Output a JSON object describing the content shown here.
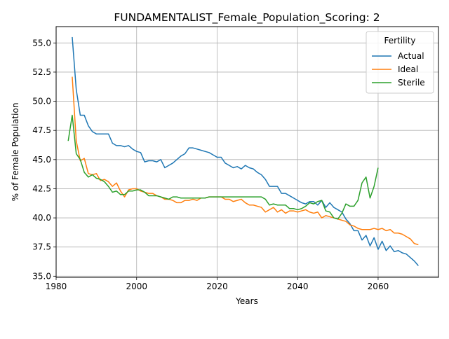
{
  "chart_data": {
    "type": "line",
    "title": "FUNDAMENTALIST_Female_Population_Scoring: 2",
    "xlabel": "Years",
    "ylabel": "% of Female Population",
    "xlim": [
      1980,
      2075
    ],
    "ylim": [
      34.9,
      56.4
    ],
    "grid": true,
    "legend": {
      "title": "Fertility",
      "position": "top-right"
    },
    "xticks": [
      1980,
      2000,
      2020,
      2040,
      2060
    ],
    "xtick_labels": [
      "1980",
      "2000",
      "2020",
      "2040",
      "2060"
    ],
    "yticks": [
      35.0,
      37.5,
      40.0,
      42.5,
      45.0,
      47.5,
      50.0,
      52.5,
      55.0
    ],
    "ytick_labels": [
      "35.0",
      "37.5",
      "40.0",
      "42.5",
      "45.0",
      "47.5",
      "50.0",
      "52.5",
      "55.0"
    ],
    "series": [
      {
        "name": "Actual",
        "color": "#1f77b4",
        "x": [
          1984,
          1985,
          1986,
          1987,
          1988,
          1989,
          1990,
          1991,
          1992,
          1993,
          1994,
          1995,
          1996,
          1997,
          1998,
          1999,
          2000,
          2001,
          2002,
          2003,
          2004,
          2005,
          2006,
          2007,
          2008,
          2009,
          2010,
          2011,
          2012,
          2013,
          2014,
          2015,
          2016,
          2017,
          2018,
          2019,
          2020,
          2021,
          2022,
          2023,
          2024,
          2025,
          2026,
          2027,
          2028,
          2029,
          2030,
          2031,
          2032,
          2033,
          2034,
          2035,
          2036,
          2037,
          2038,
          2039,
          2040,
          2041,
          2042,
          2043,
          2044,
          2045,
          2046,
          2047,
          2048,
          2049,
          2050,
          2051,
          2052,
          2053,
          2054,
          2055,
          2056,
          2057,
          2058,
          2059,
          2060,
          2061,
          2062,
          2063,
          2064,
          2065,
          2066,
          2067,
          2068,
          2069,
          2070
        ],
        "values": [
          55.5,
          51.0,
          48.8,
          48.8,
          47.9,
          47.4,
          47.2,
          47.2,
          47.2,
          47.2,
          46.4,
          46.2,
          46.2,
          46.1,
          46.2,
          45.9,
          45.7,
          45.6,
          44.8,
          44.9,
          44.9,
          44.8,
          45.0,
          44.3,
          44.5,
          44.7,
          45.0,
          45.3,
          45.5,
          46.0,
          46.0,
          45.9,
          45.8,
          45.7,
          45.6,
          45.4,
          45.2,
          45.2,
          44.7,
          44.5,
          44.3,
          44.4,
          44.2,
          44.5,
          44.3,
          44.2,
          43.9,
          43.7,
          43.3,
          42.7,
          42.7,
          42.7,
          42.1,
          42.1,
          41.9,
          41.7,
          41.5,
          41.3,
          41.2,
          41.4,
          41.4,
          41.1,
          41.5,
          40.9,
          41.3,
          40.9,
          40.7,
          40.5,
          39.9,
          39.5,
          38.9,
          38.9,
          38.1,
          38.5,
          37.6,
          38.3,
          37.3,
          38.0,
          37.2,
          37.6,
          37.1,
          37.2,
          37.0,
          36.9,
          36.6,
          36.3,
          35.9
        ]
      },
      {
        "name": "Ideal",
        "color": "#ff7f0e",
        "x": [
          1984,
          1985,
          1986,
          1987,
          1988,
          1989,
          1990,
          1991,
          1992,
          1993,
          1994,
          1995,
          1996,
          1997,
          1998,
          1999,
          2000,
          2001,
          2002,
          2003,
          2004,
          2005,
          2006,
          2007,
          2008,
          2009,
          2010,
          2011,
          2012,
          2013,
          2014,
          2015,
          2016,
          2017,
          2018,
          2019,
          2020,
          2021,
          2022,
          2023,
          2024,
          2025,
          2026,
          2027,
          2028,
          2029,
          2030,
          2031,
          2032,
          2033,
          2034,
          2035,
          2036,
          2037,
          2038,
          2039,
          2040,
          2041,
          2042,
          2043,
          2044,
          2045,
          2046,
          2047,
          2048,
          2049,
          2050,
          2051,
          2052,
          2053,
          2054,
          2055,
          2056,
          2057,
          2058,
          2059,
          2060,
          2061,
          2062,
          2063,
          2064,
          2065,
          2066,
          2067,
          2068,
          2069,
          2070
        ],
        "values": [
          52.1,
          46.6,
          44.9,
          45.1,
          43.8,
          43.7,
          43.8,
          43.2,
          43.3,
          43.1,
          42.7,
          43.0,
          42.3,
          41.8,
          42.4,
          42.5,
          42.5,
          42.3,
          42.2,
          42.1,
          42.1,
          41.9,
          41.8,
          41.6,
          41.6,
          41.5,
          41.3,
          41.3,
          41.5,
          41.5,
          41.6,
          41.5,
          41.7,
          41.7,
          41.8,
          41.8,
          41.8,
          41.8,
          41.6,
          41.6,
          41.4,
          41.5,
          41.6,
          41.3,
          41.1,
          41.1,
          41.0,
          40.9,
          40.5,
          40.7,
          40.9,
          40.5,
          40.7,
          40.4,
          40.6,
          40.6,
          40.5,
          40.6,
          40.7,
          40.5,
          40.4,
          40.5,
          40.0,
          40.2,
          40.1,
          40.0,
          39.9,
          39.8,
          39.7,
          39.4,
          39.3,
          39.1,
          39.0,
          39.0,
          39.0,
          39.1,
          39.0,
          39.1,
          38.9,
          39.0,
          38.7,
          38.7,
          38.6,
          38.4,
          38.2,
          37.8,
          37.7
        ]
      },
      {
        "name": "Sterile",
        "color": "#2ca02c",
        "x": [
          1983,
          1984,
          1985,
          1986,
          1987,
          1988,
          1989,
          1990,
          1991,
          1992,
          1993,
          1994,
          1995,
          1996,
          1997,
          1998,
          1999,
          2000,
          2001,
          2002,
          2003,
          2004,
          2005,
          2006,
          2007,
          2008,
          2009,
          2010,
          2011,
          2012,
          2013,
          2014,
          2015,
          2016,
          2017,
          2018,
          2019,
          2020,
          2021,
          2022,
          2023,
          2024,
          2025,
          2026,
          2027,
          2028,
          2029,
          2030,
          2031,
          2032,
          2033,
          2034,
          2035,
          2036,
          2037,
          2038,
          2039,
          2040,
          2041,
          2042,
          2043,
          2044,
          2045,
          2046,
          2047,
          2048,
          2049,
          2050,
          2051,
          2052,
          2053,
          2054,
          2055,
          2056,
          2057,
          2058,
          2059,
          2060
        ],
        "values": [
          46.6,
          48.8,
          45.5,
          45.0,
          43.9,
          43.5,
          43.7,
          43.4,
          43.3,
          43.1,
          42.7,
          42.2,
          42.3,
          42.0,
          42.0,
          42.3,
          42.3,
          42.4,
          42.4,
          42.2,
          41.9,
          41.9,
          41.9,
          41.8,
          41.7,
          41.6,
          41.8,
          41.8,
          41.7,
          41.7,
          41.7,
          41.7,
          41.7,
          41.7,
          41.7,
          41.8,
          41.8,
          41.8,
          41.8,
          41.8,
          41.8,
          41.8,
          41.8,
          41.8,
          41.8,
          41.8,
          41.8,
          41.8,
          41.8,
          41.6,
          41.1,
          41.2,
          41.1,
          41.1,
          41.1,
          40.8,
          40.8,
          40.7,
          40.8,
          41.0,
          41.3,
          41.2,
          41.4,
          41.5,
          40.6,
          40.5,
          40.0,
          39.9,
          40.4,
          41.2,
          41.0,
          41.0,
          41.5,
          43.0,
          43.5,
          41.7,
          42.7,
          44.3
        ]
      }
    ]
  }
}
